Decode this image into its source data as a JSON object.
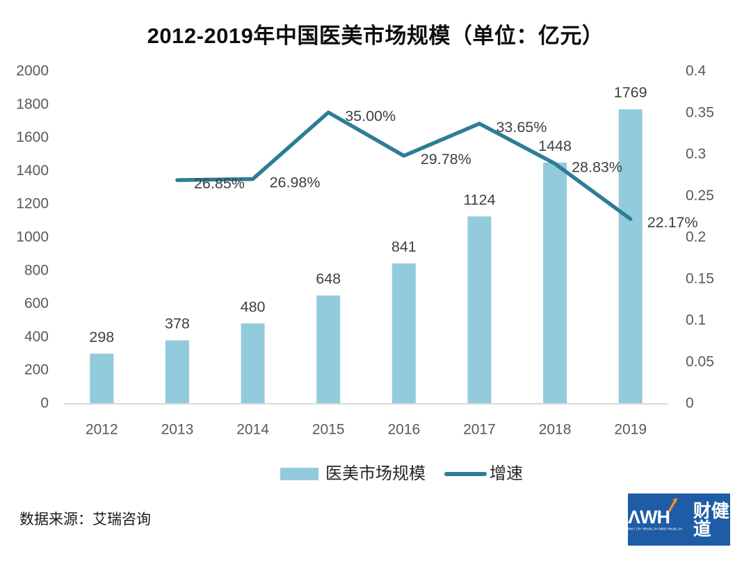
{
  "source_note": "数据来源：艾瑞咨询",
  "logo": {
    "latin": "ΛWH",
    "chinese": "财健道",
    "tagline": "ART OF WEALTH AND HEALTH",
    "bg_color": "#1E5CA6",
    "accent_color": "#F29327"
  },
  "chart_data": {
    "type": "bar+line",
    "title": "2012-2019年中国医美市场规模（单位：亿元）",
    "categories": [
      "2012",
      "2013",
      "2014",
      "2015",
      "2016",
      "2017",
      "2018",
      "2019"
    ],
    "series": [
      {
        "name": "医美市场规模",
        "type": "bar",
        "axis": "left",
        "color": "#92CBDC",
        "values": [
          298,
          378,
          480,
          648,
          841,
          1124,
          1448,
          1769
        ]
      },
      {
        "name": "增速",
        "type": "line",
        "axis": "right",
        "color": "#2E7D96",
        "values": [
          null,
          0.2685,
          0.2698,
          0.35,
          0.2978,
          0.3365,
          0.2883,
          0.2217
        ],
        "labels": [
          null,
          "26.85%",
          "26.98%",
          "35.00%",
          "29.78%",
          "33.65%",
          "28.83%",
          "22.17%"
        ]
      }
    ],
    "left_axis": {
      "min": 0,
      "max": 2000,
      "step": 200,
      "ticks": [
        "0",
        "200",
        "400",
        "600",
        "800",
        "1000",
        "1200",
        "1400",
        "1600",
        "1800",
        "2000"
      ]
    },
    "right_axis": {
      "min": 0,
      "max": 0.4,
      "step": 0.05,
      "ticks": [
        "0",
        "0.05",
        "0.1",
        "0.15",
        "0.2",
        "0.25",
        "0.3",
        "0.35",
        "0.4"
      ]
    },
    "grid": false,
    "legend_position": "bottom"
  }
}
